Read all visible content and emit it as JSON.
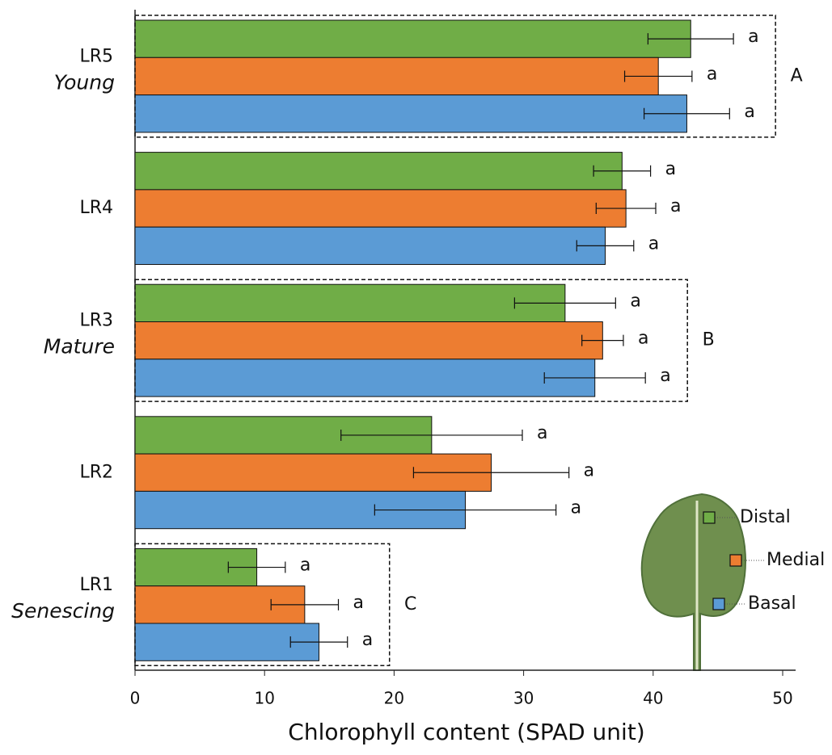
{
  "chart_data": {
    "type": "hbar",
    "x_label": "Chlorophyll content (SPAD unit)",
    "categories": [
      "LR5",
      "LR4",
      "LR3",
      "LR2",
      "LR1"
    ],
    "stage_labels": [
      "Young",
      null,
      "Mature",
      null,
      "Senescing"
    ],
    "group_labels": [
      "A",
      null,
      "B",
      null,
      "C"
    ],
    "series": [
      {
        "name": "Distal",
        "color": "#70ad47",
        "values": [
          42.9,
          37.6,
          33.2,
          22.9,
          9.4
        ],
        "errors": [
          3.3,
          2.2,
          3.9,
          7.0,
          2.2
        ],
        "letters": [
          "a",
          "a",
          "a",
          "a",
          "a"
        ]
      },
      {
        "name": "Medial",
        "color": "#ed7d31",
        "values": [
          40.4,
          37.9,
          36.1,
          27.5,
          13.1
        ],
        "errors": [
          2.6,
          2.3,
          1.6,
          6.0,
          2.6
        ],
        "letters": [
          "a",
          "a",
          "a",
          "a",
          "a"
        ]
      },
      {
        "name": "Basal",
        "color": "#5b9bd5",
        "values": [
          42.6,
          36.3,
          35.5,
          25.5,
          14.2
        ],
        "errors": [
          3.3,
          2.2,
          3.9,
          7.0,
          2.2
        ],
        "letters": [
          "a",
          "a",
          "a",
          "a",
          "a"
        ]
      }
    ],
    "xlim": [
      0,
      51
    ],
    "xticks": [
      0,
      10,
      20,
      30,
      40,
      50
    ]
  }
}
